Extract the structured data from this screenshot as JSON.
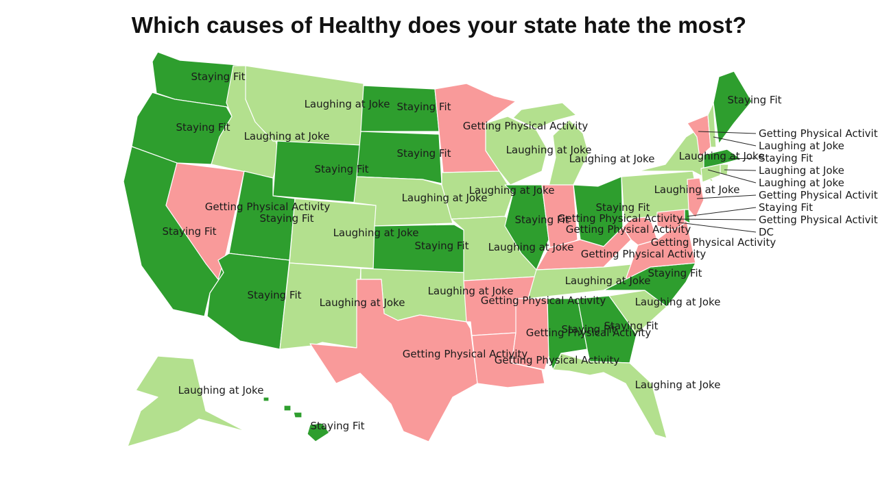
{
  "title": "Which causes of Healthy does your state hate the most?",
  "legend_colors": {
    "Staying Fit": "#2e9e2e",
    "Laughing at Joke": "#b3e08e",
    "Getting Physical Activity": "#f99a9a"
  },
  "states": {
    "WA": "Staying Fit",
    "OR": "Staying Fit",
    "CA": "Staying Fit",
    "NV": "Getting Physical Activity",
    "ID": "Laughing at Joke",
    "MT": "Laughing at Joke",
    "WY": "Staying Fit",
    "UT": "Staying Fit",
    "AZ": "Staying Fit",
    "CO": "Laughing at Joke",
    "NM": "Laughing at Joke",
    "ND": "Staying Fit",
    "SD": "Staying Fit",
    "NE": "Laughing at Joke",
    "KS": "Staying Fit",
    "OK": "Laughing at Joke",
    "TX": "Getting Physical Activity",
    "MN": "Getting Physical Activity",
    "IA": "Laughing at Joke",
    "MO": "Laughing at Joke",
    "AR": "Getting Physical Activity",
    "LA": "Getting Physical Activity",
    "WI": "Laughing at Joke",
    "IL": "Staying Fit",
    "MI": "Laughing at Joke",
    "IN": "Getting Physical Activity",
    "OH": "Staying Fit",
    "KY": "Getting Physical Activity",
    "TN": "Laughing at Joke",
    "MS": "Getting Physical Activity",
    "AL": "Staying Fit",
    "GA": "Staying Fit",
    "FL": "Laughing at Joke",
    "SC": "Laughing at Joke",
    "NC": "Staying Fit",
    "VA": "Getting Physical Activity",
    "WV": "Getting Physical Activity",
    "PA": "Laughing at Joke",
    "NY": "Laughing at Joke",
    "VT": "Getting Physical Activity",
    "NH": "Laughing at Joke",
    "ME": "Staying Fit",
    "MA": "Staying Fit",
    "RI": "Laughing at Joke",
    "CT": "Laughing at Joke",
    "NJ": "Getting Physical Activity",
    "DE": "Staying Fit",
    "MD": "Getting Physical Activity",
    "DC": "DC",
    "AK": "Laughing at Joke",
    "HI": "Staying Fit"
  },
  "callouts": [
    "Getting Physical Activity",
    "Laughing at Joke",
    "Staying Fit",
    "Laughing at Joke",
    "Laughing at Joke",
    "Getting Physical Activity",
    "Staying Fit",
    "Getting Physical Activity",
    "DC"
  ]
}
